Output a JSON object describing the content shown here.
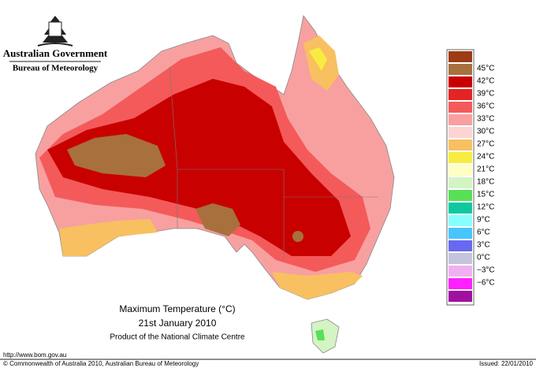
{
  "header": {
    "government": "Australian Government",
    "bureau": "Bureau of Meteorology"
  },
  "map": {
    "title": "Maximum Temperature (°C)",
    "date": "21st January 2010",
    "product": "Product of the National Climate Centre"
  },
  "legend": {
    "colors": [
      "#9c3c14",
      "#a8703c",
      "#c80000",
      "#e42424",
      "#f45a5a",
      "#f8a0a0",
      "#fcd4d4",
      "#f8c060",
      "#f8ec40",
      "#ffffc4",
      "#d4f4c4",
      "#58e058",
      "#10c8a0",
      "#88ffff",
      "#48c4ff",
      "#6868f0",
      "#c4c4dc",
      "#f0b0f0",
      "#ff20ff",
      "#a010a0"
    ],
    "labels": [
      "45°C",
      "42°C",
      "39°C",
      "36°C",
      "33°C",
      "30°C",
      "27°C",
      "24°C",
      "21°C",
      "18°C",
      "15°C",
      "12°C",
      "9°C",
      "6°C",
      "3°C",
      "0°C",
      "−3°C",
      "−6°C"
    ]
  },
  "footer": {
    "url": "http://www.bom.gov.au",
    "copyright": "© Commonwealth of Australia 2010, Australian Bureau of Meteorology",
    "issued": "Issued: 22/01/2010"
  }
}
